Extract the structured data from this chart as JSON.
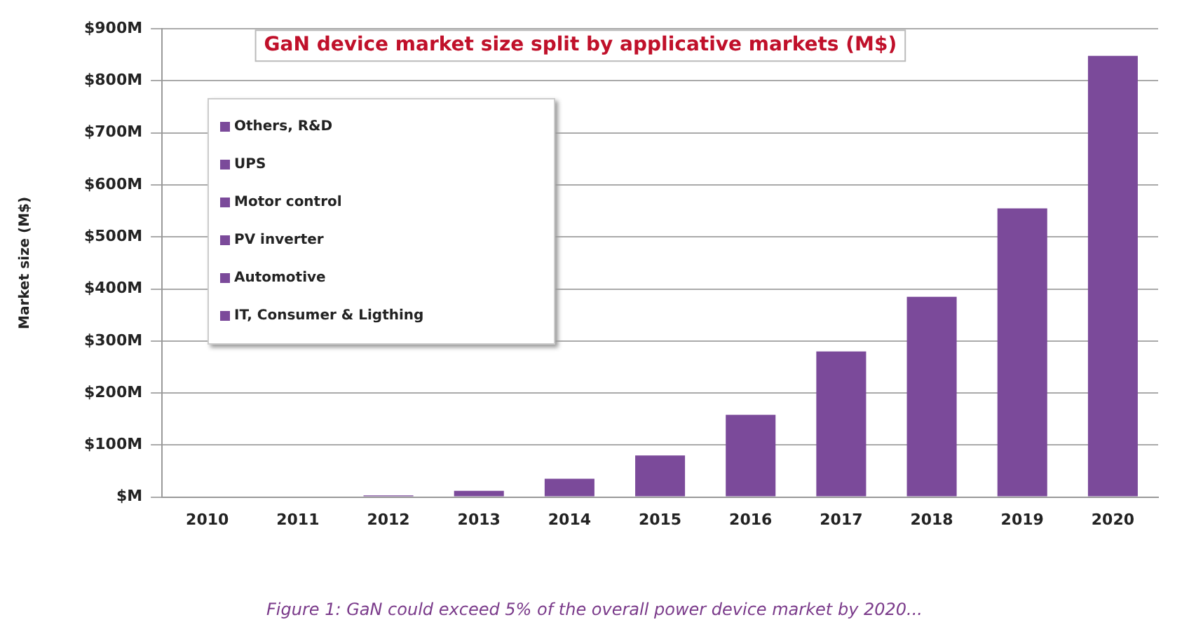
{
  "chart_data": {
    "type": "bar",
    "title": "GaN device market size split by applicative markets (M$)",
    "ylabel": "Market size (M$)",
    "categories": [
      "2010",
      "2011",
      "2012",
      "2013",
      "2014",
      "2015",
      "2016",
      "2017",
      "2018",
      "2019",
      "2020"
    ],
    "values": [
      0,
      0,
      3,
      12,
      35,
      80,
      158,
      280,
      385,
      555,
      848
    ],
    "color": "#7b4a9a",
    "ylim": [
      0,
      900
    ],
    "yticks": [
      {
        "value": 0,
        "label": "$M"
      },
      {
        "value": 100,
        "label": "$100M"
      },
      {
        "value": 200,
        "label": "$200M"
      },
      {
        "value": 300,
        "label": "$300M"
      },
      {
        "value": 400,
        "label": "$400M"
      },
      {
        "value": 500,
        "label": "$500M"
      },
      {
        "value": 600,
        "label": "$600M"
      },
      {
        "value": 700,
        "label": "$700M"
      },
      {
        "value": 800,
        "label": "$800M"
      },
      {
        "value": 900,
        "label": "$900M"
      }
    ],
    "grid": "y",
    "annotations": [
      "Others, R&D",
      "UPS",
      "Motor control",
      "PV inverter",
      "Automotive",
      "IT, Consumer & Ligthing",
      "Figure 1: GaN could exceed 5% of the overall power device market by 2020..."
    ]
  }
}
